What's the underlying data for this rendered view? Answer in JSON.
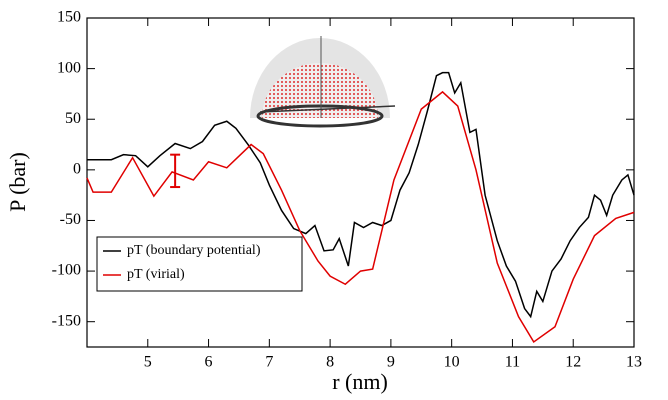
{
  "chart_data": {
    "type": "line",
    "x_label": "r (nm)",
    "y_label": "P (bar)",
    "xlim": [
      4,
      13
    ],
    "ylim": [
      -175,
      150
    ],
    "xticks": [
      5,
      6,
      7,
      8,
      9,
      10,
      11,
      12,
      13
    ],
    "yticks": [
      -150,
      -100,
      -50,
      0,
      50,
      100,
      150
    ],
    "legend_loc": "lower left",
    "series": [
      {
        "name": "pT (boundary potential)",
        "color": "#000000",
        "x": [
          4.0,
          4.2,
          4.4,
          4.6,
          4.8,
          5.0,
          5.2,
          5.45,
          5.7,
          5.9,
          6.1,
          6.3,
          6.45,
          6.65,
          6.85,
          7.0,
          7.2,
          7.4,
          7.6,
          7.75,
          7.9,
          8.05,
          8.15,
          8.3,
          8.4,
          8.55,
          8.7,
          8.85,
          9.0,
          9.15,
          9.3,
          9.45,
          9.6,
          9.75,
          9.85,
          9.95,
          10.05,
          10.15,
          10.3,
          10.4,
          10.55,
          10.75,
          10.9,
          11.05,
          11.2,
          11.3,
          11.4,
          11.5,
          11.65,
          11.8,
          11.95,
          12.1,
          12.25,
          12.35,
          12.45,
          12.55,
          12.65,
          12.8,
          12.9,
          13.0
        ],
        "values": [
          10,
          10,
          10,
          15,
          14,
          3,
          14,
          26,
          21,
          28,
          44,
          48,
          41,
          25,
          7,
          -15,
          -40,
          -58,
          -63,
          -55,
          -80,
          -79,
          -68,
          -95,
          -52,
          -57,
          -52,
          -55,
          -50,
          -20,
          -3,
          25,
          58,
          93,
          96,
          96,
          76,
          86,
          37,
          40,
          -25,
          -70,
          -95,
          -110,
          -137,
          -145,
          -120,
          -130,
          -100,
          -88,
          -70,
          -57,
          -47,
          -25,
          -30,
          -45,
          -25,
          -10,
          -5,
          -25
        ]
      },
      {
        "name": "pT (virial)",
        "color": "#e00000",
        "x": [
          4.0,
          4.1,
          4.4,
          4.75,
          5.1,
          5.4,
          5.75,
          6.0,
          6.3,
          6.7,
          6.9,
          7.2,
          7.5,
          7.8,
          8.0,
          8.25,
          8.5,
          8.7,
          9.05,
          9.5,
          9.85,
          10.1,
          10.4,
          10.75,
          11.1,
          11.35,
          11.7,
          12.0,
          12.35,
          12.7,
          13.0
        ],
        "values": [
          -8,
          -22,
          -22,
          12,
          -26,
          -2,
          -10,
          8,
          2,
          25,
          16,
          -20,
          -60,
          -90,
          -105,
          -113,
          -100,
          -98,
          -10,
          60,
          77,
          63,
          0,
          -92,
          -145,
          -170,
          -155,
          -108,
          -65,
          -48,
          -42
        ]
      }
    ],
    "error_bars": [
      {
        "x": 5.45,
        "value": -1,
        "error": 16,
        "color": "#e00000"
      }
    ]
  }
}
